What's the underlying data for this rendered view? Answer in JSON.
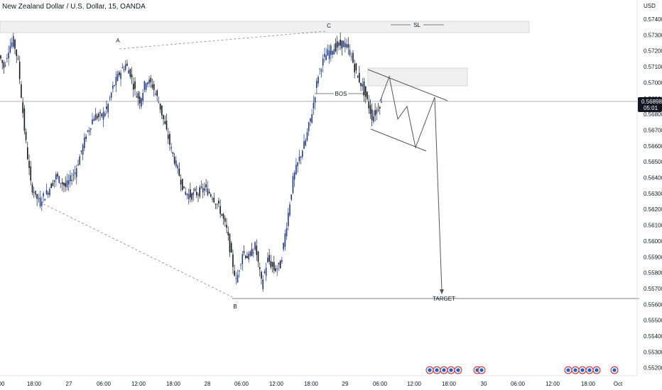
{
  "header": {
    "title": "New Zealand Dollar / U.S. Dollar, 15, OANDA"
  },
  "chart_data": {
    "type": "candlestick",
    "symbol": "NZDUSD",
    "timeframe": "15",
    "source": "OANDA",
    "currency_label": "USD",
    "ylim": [
      0.5517,
      0.5748
    ],
    "y_ticks": [
      "0.57400",
      "0.57300",
      "0.57200",
      "0.57100",
      "0.57000",
      "0.56900",
      "0.56800",
      "0.56700",
      "0.56600",
      "0.56500",
      "0.56400",
      "0.56300",
      "0.56200",
      "0.56100",
      "0.56000",
      "0.55900",
      "0.55800",
      "0.55700",
      "0.55600",
      "0.55500",
      "0.55400",
      "0.55300",
      "0.55200"
    ],
    "x_ticks": [
      "00",
      "18:00",
      "27",
      "06:00",
      "12:00",
      "18:00",
      "28",
      "06:00",
      "12:00",
      "18:00",
      "29",
      "06:00",
      "12:00",
      "18:00",
      "30",
      "06:00",
      "12:00",
      "18:00",
      "Oct"
    ],
    "current_price": "0.56898",
    "countdown": "05:01",
    "price_path": [
      [
        0,
        0.5724
      ],
      [
        3,
        0.5716
      ],
      [
        6,
        0.5729
      ],
      [
        9,
        0.5734
      ],
      [
        12,
        0.5719
      ],
      [
        16,
        0.5674
      ],
      [
        20,
        0.5638
      ],
      [
        25,
        0.5627
      ],
      [
        30,
        0.5633
      ],
      [
        36,
        0.5644
      ],
      [
        42,
        0.5637
      ],
      [
        48,
        0.5647
      ],
      [
        55,
        0.5671
      ],
      [
        60,
        0.5684
      ],
      [
        64,
        0.5683
      ],
      [
        68,
        0.5688
      ],
      [
        72,
        0.5703
      ],
      [
        76,
        0.5712
      ],
      [
        80,
        0.5718
      ],
      [
        83,
        0.5712
      ],
      [
        86,
        0.57
      ],
      [
        89,
        0.5694
      ],
      [
        93,
        0.5708
      ],
      [
        97,
        0.5704
      ],
      [
        101,
        0.5693
      ],
      [
        105,
        0.5677
      ],
      [
        109,
        0.5661
      ],
      [
        113,
        0.5648
      ],
      [
        117,
        0.5634
      ],
      [
        121,
        0.5631
      ],
      [
        126,
        0.5633
      ],
      [
        130,
        0.5636
      ],
      [
        135,
        0.5631
      ],
      [
        140,
        0.5621
      ],
      [
        144,
        0.5608
      ],
      [
        147,
        0.559
      ],
      [
        150,
        0.5574
      ],
      [
        154,
        0.5594
      ],
      [
        158,
        0.559
      ],
      [
        162,
        0.5598
      ],
      [
        166,
        0.5573
      ],
      [
        170,
        0.5589
      ],
      [
        174,
        0.5582
      ],
      [
        178,
        0.5585
      ],
      [
        182,
        0.5613
      ],
      [
        186,
        0.5642
      ],
      [
        190,
        0.5656
      ],
      [
        194,
        0.5668
      ],
      [
        198,
        0.5687
      ],
      [
        202,
        0.5712
      ],
      [
        206,
        0.5723
      ],
      [
        210,
        0.5728
      ],
      [
        214,
        0.573
      ],
      [
        218,
        0.5732
      ],
      [
        222,
        0.5726
      ],
      [
        226,
        0.5712
      ],
      [
        230,
        0.5703
      ],
      [
        234,
        0.569
      ],
      [
        236,
        0.5683
      ],
      [
        238,
        0.5686
      ],
      [
        241,
        0.5692
      ]
    ]
  },
  "annotations": {
    "a": "A",
    "b": "B",
    "c": "C",
    "bos": "BOS",
    "sl": "SL",
    "target": "TARGET"
  },
  "colors": {
    "bull": "#1e3a8a",
    "bear": "#131722",
    "zone": "#f0f0f0",
    "zone_border": "#d8d8d8",
    "line": "#555555",
    "dash": "#888888",
    "price_line": "#999999",
    "price_box": "#131722"
  }
}
